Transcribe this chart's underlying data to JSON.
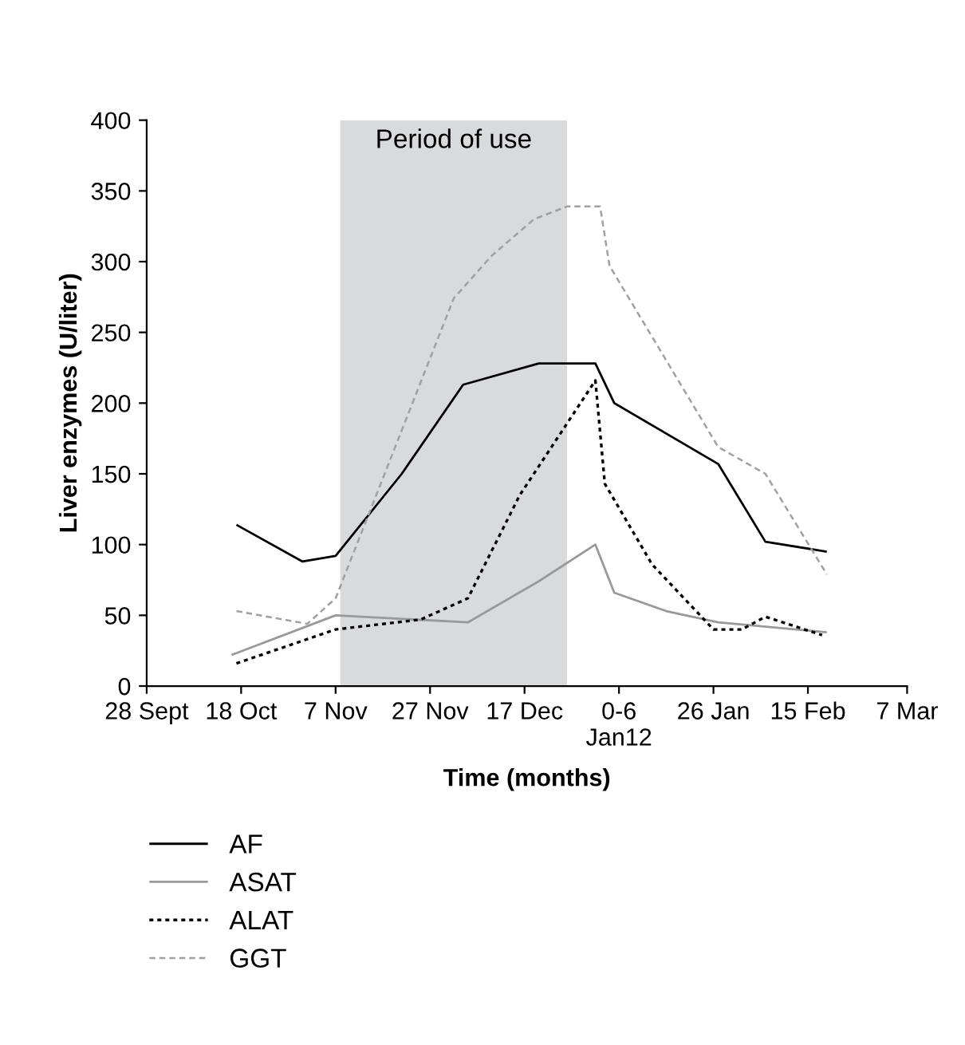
{
  "chart_data": {
    "type": "line",
    "xlabel": "Time (months)",
    "ylabel": "Liver enzymes (U/liter)",
    "xlim": [
      "2011-09-28",
      "2012-03-07"
    ],
    "xticks": [
      {
        "value": "2011-09-28",
        "label": "28 Sept"
      },
      {
        "value": "2011-10-18",
        "label": "18 Oct"
      },
      {
        "value": "2011-11-07",
        "label": "7 Nov"
      },
      {
        "value": "2011-11-27",
        "label": "27 Nov"
      },
      {
        "value": "2011-12-17",
        "label": "17 Dec"
      },
      {
        "value": "2012-01-06",
        "label": "0-6\nJan12"
      },
      {
        "value": "2012-01-26",
        "label": "26 Jan"
      },
      {
        "value": "2012-02-15",
        "label": "15 Feb"
      },
      {
        "value": "2012-03-07",
        "label": "7 Mar"
      }
    ],
    "ylim": [
      0,
      400
    ],
    "yticks": [
      0,
      50,
      100,
      150,
      200,
      250,
      300,
      350,
      400
    ],
    "grid": false,
    "legend": "bottom left",
    "bands": [
      {
        "axis": "x",
        "from": "2011-11-08",
        "to": "2011-12-26",
        "label": "Period of use",
        "color": "#d9dadc"
      }
    ],
    "series": [
      {
        "name": "AF",
        "color": "#000000",
        "line_style": "solid",
        "x": [
          "2011-10-17",
          "2011-10-31",
          "2011-11-07",
          "2011-11-21",
          "2011-12-04",
          "2011-12-20",
          "2012-01-01",
          "2012-01-05",
          "2012-01-27",
          "2012-02-06",
          "2012-02-19"
        ],
        "values": [
          114,
          88,
          92,
          150,
          213,
          228,
          228,
          200,
          157,
          102,
          95
        ]
      },
      {
        "name": "ASAT",
        "color": "#999999",
        "line_style": "solid",
        "x": [
          "2011-10-16",
          "2011-11-07",
          "2011-12-05",
          "2011-12-20",
          "2012-01-01",
          "2012-01-05",
          "2012-01-16",
          "2012-01-27",
          "2012-02-19"
        ],
        "values": [
          22,
          50,
          45,
          74,
          100,
          66,
          53,
          45,
          38
        ]
      },
      {
        "name": "ALAT",
        "color": "#000000",
        "line_style": "dotted",
        "x": [
          "2011-10-17",
          "2011-11-07",
          "2011-11-25",
          "2011-12-05",
          "2011-12-16",
          "2012-01-01",
          "2012-01-03",
          "2012-01-13",
          "2012-01-26",
          "2012-02-01",
          "2012-02-06",
          "2012-02-18"
        ],
        "values": [
          16,
          40,
          47,
          62,
          135,
          216,
          143,
          86,
          40,
          40,
          49,
          36
        ]
      },
      {
        "name": "GGT",
        "color": "#a0a0a0",
        "line_style": "dashed",
        "x": [
          "2011-10-17",
          "2011-11-01",
          "2011-11-07",
          "2011-12-02",
          "2011-12-10",
          "2011-12-19",
          "2011-12-26",
          "2012-01-02",
          "2012-01-04",
          "2012-01-27",
          "2012-02-06",
          "2012-02-19"
        ],
        "values": [
          53,
          44,
          62,
          274,
          304,
          330,
          339,
          339,
          297,
          169,
          150,
          79
        ]
      }
    ]
  }
}
